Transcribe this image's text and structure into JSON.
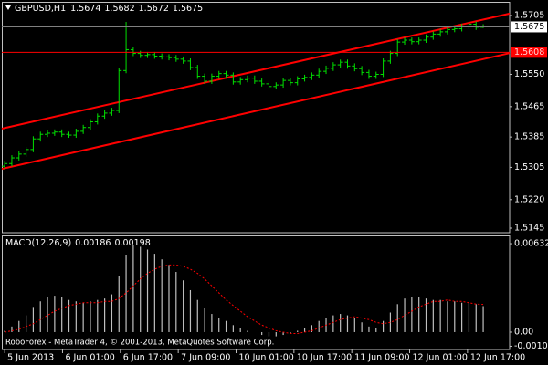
{
  "chart_data": [
    {
      "type": "ohlc",
      "title": "GBPUSD,H1",
      "color": "#00e000",
      "grid": false,
      "xlim": [
        -0.4,
        70.7
      ],
      "ylim": [
        1.5133,
        1.5741
      ],
      "yticks": [
        1.5705,
        {
          "value": 1.555,
          "label": "1.5550"
        },
        1.5465,
        1.5385,
        1.5305,
        {
          "value": 1.522,
          "label": "1.5220"
        },
        1.5145
      ],
      "open": [
        1.5308,
        1.5315,
        1.533,
        1.534,
        1.5352,
        1.538,
        1.5392,
        1.5395,
        1.5398,
        1.5392,
        1.539,
        1.54,
        1.541,
        1.5425,
        1.544,
        1.5448,
        1.5455,
        1.556,
        1.5615,
        1.5605,
        1.56,
        1.5602,
        1.5598,
        1.5596,
        1.5594,
        1.559,
        1.5585,
        1.5568,
        1.5545,
        1.5532,
        1.5545,
        1.5552,
        1.5548,
        1.553,
        1.5536,
        1.554,
        1.5532,
        1.5525,
        1.5518,
        1.5522,
        1.5534,
        1.5528,
        1.5538,
        1.5542,
        1.5548,
        1.5558,
        1.5566,
        1.5575,
        1.5582,
        1.5572,
        1.5565,
        1.5555,
        1.5545,
        1.555,
        1.5585,
        1.5605,
        1.5635,
        1.564,
        1.5636,
        1.564,
        1.5648,
        1.5656,
        1.5662,
        1.5668,
        1.567,
        1.5676,
        1.5682,
        1.5674
      ],
      "high": [
        1.5322,
        1.5337,
        1.5347,
        1.5359,
        1.5387,
        1.5399,
        1.5402,
        1.5405,
        1.5405,
        1.5399,
        1.5407,
        1.5417,
        1.5432,
        1.5447,
        1.5455,
        1.5462,
        1.5567,
        1.5688,
        1.5622,
        1.5612,
        1.5609,
        1.5609,
        1.5605,
        1.5603,
        1.5601,
        1.5597,
        1.5592,
        1.5575,
        1.5552,
        1.5552,
        1.5559,
        1.5559,
        1.5555,
        1.5543,
        1.5547,
        1.5547,
        1.5539,
        1.5532,
        1.5529,
        1.5541,
        1.5541,
        1.5545,
        1.5549,
        1.5555,
        1.5565,
        1.5573,
        1.5582,
        1.5589,
        1.5589,
        1.5579,
        1.5572,
        1.5562,
        1.5557,
        1.5592,
        1.5612,
        1.5642,
        1.5647,
        1.5647,
        1.5647,
        1.5655,
        1.5663,
        1.5669,
        1.5675,
        1.5677,
        1.5683,
        1.5689,
        1.5689,
        1.5682
      ],
      "low": [
        1.5301,
        1.5308,
        1.5323,
        1.5333,
        1.5345,
        1.5373,
        1.5385,
        1.5388,
        1.5385,
        1.5383,
        1.5383,
        1.5393,
        1.5403,
        1.5418,
        1.5433,
        1.5441,
        1.5448,
        1.5553,
        1.5598,
        1.5593,
        1.5593,
        1.5591,
        1.5589,
        1.5587,
        1.5583,
        1.5578,
        1.5561,
        1.5538,
        1.5525,
        1.5525,
        1.5538,
        1.5541,
        1.5523,
        1.5523,
        1.5529,
        1.5525,
        1.5518,
        1.5511,
        1.5511,
        1.5515,
        1.5521,
        1.5521,
        1.5531,
        1.5535,
        1.5541,
        1.5551,
        1.5559,
        1.5568,
        1.5565,
        1.5558,
        1.5548,
        1.5538,
        1.5538,
        1.5543,
        1.5578,
        1.5598,
        1.5628,
        1.5629,
        1.5629,
        1.5633,
        1.5641,
        1.5649,
        1.5655,
        1.5661,
        1.5663,
        1.5669,
        1.5667,
        1.5672
      ],
      "close": [
        1.5315,
        1.533,
        1.534,
        1.5352,
        1.538,
        1.5392,
        1.5395,
        1.5398,
        1.5392,
        1.539,
        1.54,
        1.541,
        1.5425,
        1.544,
        1.5448,
        1.5455,
        1.556,
        1.5615,
        1.5605,
        1.56,
        1.5602,
        1.5598,
        1.5596,
        1.5594,
        1.559,
        1.5585,
        1.5568,
        1.5545,
        1.5532,
        1.5545,
        1.5552,
        1.5548,
        1.553,
        1.5536,
        1.554,
        1.5532,
        1.5525,
        1.5518,
        1.5522,
        1.5534,
        1.5528,
        1.5538,
        1.5542,
        1.5548,
        1.5558,
        1.5566,
        1.5575,
        1.5582,
        1.5572,
        1.5565,
        1.5555,
        1.5545,
        1.555,
        1.5585,
        1.5605,
        1.5635,
        1.564,
        1.5636,
        1.564,
        1.5648,
        1.5656,
        1.5662,
        1.5668,
        1.567,
        1.5676,
        1.5682,
        1.5674,
        1.5675
      ],
      "lines": [
        {
          "x": [
            -0.4,
            70.7
          ],
          "y": [
            1.5407,
            1.571
          ],
          "color": "#ff0000"
        },
        {
          "x": [
            -0.4,
            70.7
          ],
          "y": [
            1.5301,
            1.5606
          ],
          "color": "#ff0000"
        }
      ],
      "hline": {
        "value": 1.5608,
        "color": "#ff0000"
      },
      "bid_line_color": "#808080"
    },
    {
      "type": "macd",
      "title": "MACD(12,26,9)",
      "xlim": [
        -0.4,
        70.7
      ],
      "ylim": [
        -0.00124,
        0.00691
      ],
      "yticks": [
        0.00632,
        {
          "value": 0,
          "label": "0.00"
        },
        -0.00101
      ],
      "xticks": [
        {
          "value": 0,
          "label": "5 Jun 2013"
        },
        {
          "value": 8.1,
          "label": "6 Jun 01:00"
        },
        {
          "value": 16.2,
          "label": "6 Jun 17:00"
        },
        {
          "value": 24.3,
          "label": "7 Jun 09:00"
        },
        {
          "value": 32.4,
          "label": "10 Jun 01:00"
        },
        {
          "value": 40.5,
          "label": "10 Jun 17:00"
        },
        {
          "value": 48.6,
          "label": "11 Jun 09:00"
        },
        {
          "value": 56.7,
          "label": "12 Jun 01:00"
        },
        {
          "value": 64.8,
          "label": "12 Jun 17:00"
        }
      ],
      "watermark": "RoboForex - MetaTrader 4, © 2001-2013, MetaQuotes Software Corp.",
      "series": [
        {
          "type": "bar",
          "color": "#c0c0c0",
          "values": [
            0.0001,
            0.0004,
            0.0008,
            0.0012,
            0.0018,
            0.0022,
            0.0025,
            0.0026,
            0.0025,
            0.0023,
            0.0022,
            0.0021,
            0.0022,
            0.0023,
            0.0024,
            0.0027,
            0.004,
            0.0055,
            0.0062,
            0.0061,
            0.0059,
            0.0056,
            0.0052,
            0.0048,
            0.0043,
            0.0037,
            0.003,
            0.0023,
            0.0017,
            0.0013,
            0.001,
            0.0008,
            0.0005,
            0.0003,
            0.0001,
            0,
            -0.0002,
            -0.0003,
            -0.0003,
            -0.0002,
            -0.0001,
            0.0001,
            0.0003,
            0.0005,
            0.0008,
            0.001,
            0.0012,
            0.0013,
            0.0012,
            0.001,
            0.0007,
            0.0004,
            0.0003,
            0.0008,
            0.0014,
            0.002,
            0.0024,
            0.0025,
            0.0025,
            0.0024,
            0.0023,
            0.0023,
            0.0022,
            0.0022,
            0.0021,
            0.0021,
            0.002,
            0.00186
          ]
        },
        {
          "type": "line",
          "style": "dotted",
          "color": "#ff0000",
          "values": [
            0,
            0.0001,
            0.0002,
            0.0004,
            0.0006,
            0.0009,
            0.0012,
            0.0015,
            0.0017,
            0.0019,
            0.002,
            0.0021,
            0.0021,
            0.0021,
            0.0022,
            0.0022,
            0.0024,
            0.0028,
            0.0033,
            0.0038,
            0.0042,
            0.0045,
            0.0047,
            0.0048,
            0.0048,
            0.0047,
            0.0045,
            0.0042,
            0.0038,
            0.0033,
            0.0028,
            0.0023,
            0.0019,
            0.0015,
            0.0011,
            0.0008,
            0.0005,
            0.0003,
            0.0001,
            0,
            -0.0001,
            -0.0001,
            0,
            0.0001,
            0.0003,
            0.0005,
            0.0007,
            0.0009,
            0.001,
            0.0011,
            0.001,
            0.0009,
            0.0007,
            0.0006,
            0.0007,
            0.0009,
            0.0012,
            0.0015,
            0.0018,
            0.002,
            0.0022,
            0.0022,
            0.0023,
            0.0022,
            0.0022,
            0.0021,
            0.002,
            0.00198
          ]
        }
      ]
    }
  ]
}
